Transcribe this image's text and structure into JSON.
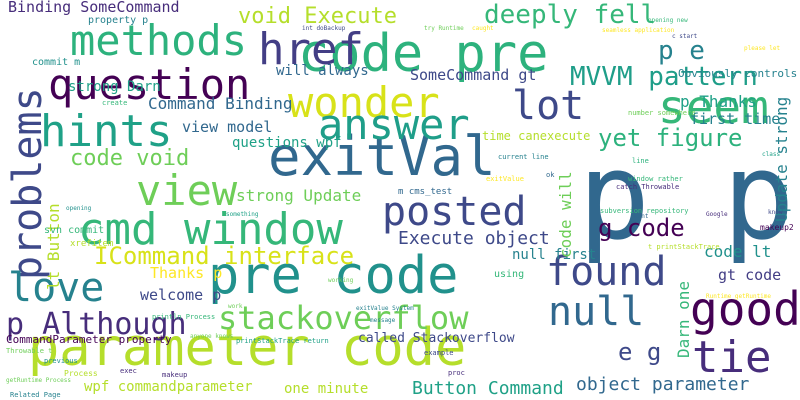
{
  "words": [
    {
      "text": "p p",
      "color": "#31688e"
    },
    {
      "text": "parameter code",
      "color": "#b5de2b"
    },
    {
      "text": "code pre",
      "color": "#2db27d"
    },
    {
      "text": "pre code",
      "color": "#21918c"
    },
    {
      "text": "exitVal",
      "color": "#31688e"
    },
    {
      "text": "cmd window",
      "color": "#35b779"
    },
    {
      "text": "methods",
      "color": "#2db27d"
    },
    {
      "text": "href",
      "color": "#433e85"
    },
    {
      "text": "question",
      "color": "#440154"
    },
    {
      "text": "wonder",
      "color": "#d8e219"
    },
    {
      "text": "answer",
      "color": "#1f9e89"
    },
    {
      "text": "seem",
      "color": "#35b779"
    },
    {
      "text": "hints",
      "color": "#1fa187"
    },
    {
      "text": "view",
      "color": "#6ece58"
    },
    {
      "text": "posted",
      "color": "#3e4989"
    },
    {
      "text": "problems",
      "color": "#3e4989"
    },
    {
      "text": "love",
      "color": "#26828e"
    },
    {
      "text": "found",
      "color": "#3e4989"
    },
    {
      "text": "null",
      "color": "#31688e"
    },
    {
      "text": "good",
      "color": "#440154"
    },
    {
      "text": "tie",
      "color": "#472d7b"
    },
    {
      "text": "lot",
      "color": "#3e4989"
    },
    {
      "text": "deeply fell",
      "color": "#35b779"
    },
    {
      "text": "void Execute",
      "color": "#b5de2b"
    },
    {
      "text": "stackoverflow",
      "color": "#6ece58"
    },
    {
      "text": "p Although",
      "color": "#472d7b"
    },
    {
      "text": "MVVM pattern",
      "color": "#1f9e89"
    },
    {
      "text": "ICommand interface",
      "color": "#d8e219"
    },
    {
      "text": "yet figure",
      "color": "#2db27d"
    },
    {
      "text": "p e",
      "color": "#26828e"
    },
    {
      "text": "code void",
      "color": "#6ece58"
    },
    {
      "text": "g code",
      "color": "#440154"
    },
    {
      "text": "e g",
      "color": "#3e4989"
    },
    {
      "text": "object parameter",
      "color": "#31688e"
    },
    {
      "text": "Button Command",
      "color": "#1fa187"
    },
    {
      "text": "Execute object",
      "color": "#3e4989"
    },
    {
      "text": "p Thanks",
      "color": "#1fa187"
    },
    {
      "text": "first time",
      "color": "#26828e"
    },
    {
      "text": "Binding SomeCommand",
      "color": "#472d7b"
    },
    {
      "text": "Command Binding",
      "color": "#31688e"
    },
    {
      "text": "SomeCommand gt",
      "color": "#3e4989"
    },
    {
      "text": "view model",
      "color": "#31688e"
    },
    {
      "text": "will always",
      "color": "#31688e"
    },
    {
      "text": "strong Darn",
      "color": "#1fa187"
    },
    {
      "text": "questions wpf",
      "color": "#1fa187"
    },
    {
      "text": "strong Update",
      "color": "#6ece58"
    },
    {
      "text": "Update strong",
      "color": "#26828e"
    },
    {
      "text": "code lt",
      "color": "#21918c"
    },
    {
      "text": "gt code",
      "color": "#433e85"
    },
    {
      "text": "lt Button",
      "color": "#b5de2b"
    },
    {
      "text": "Thanks p",
      "color": "#fde725"
    },
    {
      "text": "welcome p",
      "color": "#3e4989"
    },
    {
      "text": "null first",
      "color": "#26828e"
    },
    {
      "text": "code will",
      "color": "#6ece58"
    },
    {
      "text": "Darn one",
      "color": "#35b779"
    },
    {
      "text": "called Stackoverflow",
      "color": "#3e4989"
    },
    {
      "text": "wpf commandparameter",
      "color": "#b5de2b"
    },
    {
      "text": "one minute",
      "color": "#b5de2b"
    },
    {
      "text": "CommandParameter property",
      "color": "#440154"
    },
    {
      "text": "time canexecute",
      "color": "#b5de2b"
    },
    {
      "text": "Obviously controls",
      "color": "#26828e"
    },
    {
      "text": "svn commit",
      "color": "#35b779"
    },
    {
      "text": "commit m",
      "color": "#21918c"
    },
    {
      "text": "property p",
      "color": "#26828e"
    },
    {
      "text": "xrefitem",
      "color": "#b5de2b"
    },
    {
      "text": "m cms_test",
      "color": "#31688e"
    },
    {
      "text": "window rather",
      "color": "#35b779"
    },
    {
      "text": "using",
      "color": "#35b779"
    },
    {
      "text": "exitValue",
      "color": "#fde725"
    },
    {
      "text": "current line",
      "color": "#26828e"
    },
    {
      "text": "number somewhere",
      "color": "#6ece58"
    },
    {
      "text": "makeup2",
      "color": "#440154"
    },
    {
      "text": "makeup",
      "color": "#472d7b"
    },
    {
      "text": "exec",
      "color": "#472d7b"
    },
    {
      "text": "proc",
      "color": "#472d7b"
    },
    {
      "text": "example",
      "color": "#3e4989"
    },
    {
      "text": "Process",
      "color": "#b5de2b"
    },
    {
      "text": "previous",
      "color": "#21918c"
    },
    {
      "text": "Related Page",
      "color": "#26828e"
    },
    {
      "text": "getRuntime Process",
      "color": "#6ece58"
    },
    {
      "text": "Throwable t",
      "color": "#6ece58"
    },
    {
      "text": "println Process",
      "color": "#35b779"
    },
    {
      "text": "printStackTrace return",
      "color": "#1fa187"
    },
    {
      "text": "anyone knows",
      "color": "#6ece58"
    },
    {
      "text": "ok",
      "color": "#31688e"
    },
    {
      "text": "line",
      "color": "#2db27d"
    },
    {
      "text": "class",
      "color": "#1fa187"
    },
    {
      "text": "int doBackup",
      "color": "#3e4989"
    },
    {
      "text": "try Runtime",
      "color": "#6ece58"
    },
    {
      "text": "opening new",
      "color": "#35b779"
    },
    {
      "text": "seamless application",
      "color": "#fde725"
    },
    {
      "text": "subversion repository",
      "color": "#35b779"
    },
    {
      "text": "catch Throwable",
      "color": "#472d7b"
    },
    {
      "text": "t printStackTrace",
      "color": "#b5de2b"
    },
    {
      "text": "create",
      "color": "#35b779"
    },
    {
      "text": "something",
      "color": "#1fa187"
    },
    {
      "text": "work",
      "color": "#6ece58"
    },
    {
      "text": "working",
      "color": "#6ece58"
    },
    {
      "text": "opening",
      "color": "#21918c"
    },
    {
      "text": "message",
      "color": "#26828e"
    },
    {
      "text": "Runtime getRuntime",
      "color": "#fde725"
    },
    {
      "text": "exitValue System",
      "color": "#26828e"
    },
    {
      "text": "please let",
      "color": "#fde725"
    },
    {
      "text": "know",
      "color": "#3e4989"
    },
    {
      "text": "Google",
      "color": "#472d7b"
    },
    {
      "text": "caught",
      "color": "#fde725"
    },
    {
      "text": "want",
      "color": "#31688e"
    },
    {
      "text": "c start",
      "color": "#3e4989"
    }
  ]
}
